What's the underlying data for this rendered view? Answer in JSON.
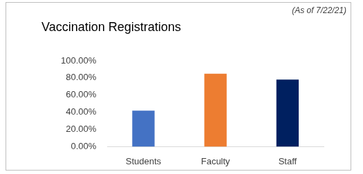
{
  "chart_data": {
    "type": "bar",
    "title": "Vaccination Registrations",
    "annotations": [
      "(As of 7/22/21)"
    ],
    "categories": [
      "Students",
      "Faculty",
      "Staff"
    ],
    "values": [
      42,
      85,
      78
    ],
    "colors": [
      "#4472c4",
      "#ed7d31",
      "#002060"
    ],
    "ylim": [
      0,
      100
    ],
    "yticks": [
      {
        "value": 0,
        "label": "0.00%"
      },
      {
        "value": 20,
        "label": "20.00%"
      },
      {
        "value": 40,
        "label": "40.00%"
      },
      {
        "value": 60,
        "label": "60.00%"
      },
      {
        "value": 80,
        "label": "80.00%"
      },
      {
        "value": 100,
        "label": "100.00%"
      }
    ],
    "grid": false
  }
}
